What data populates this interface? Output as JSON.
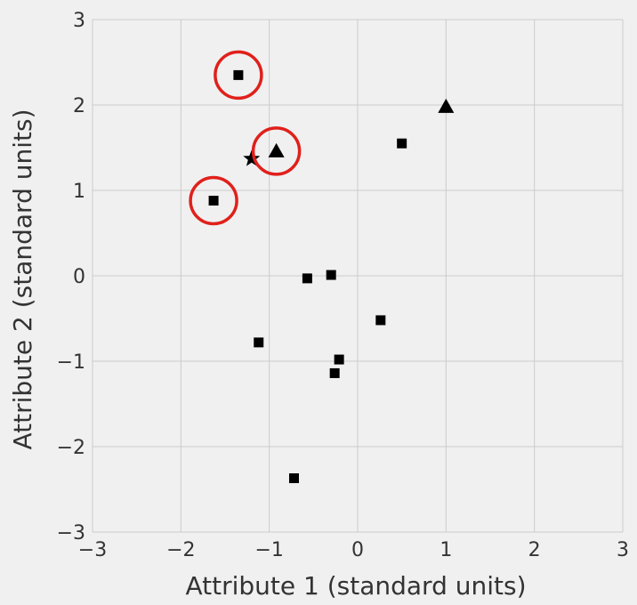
{
  "chart_data": {
    "type": "scatter",
    "xlabel": "Attribute 1 (standard units)",
    "ylabel": "Attribute 2 (standard units)",
    "xlim": [
      -3,
      3
    ],
    "ylim": [
      -3,
      3
    ],
    "xticks": [
      -3,
      -2,
      -1,
      0,
      1,
      2,
      3
    ],
    "yticks": [
      -3,
      -2,
      -1,
      0,
      1,
      2,
      3
    ],
    "xtick_labels": [
      "−3",
      "−2",
      "−1",
      "0",
      "1",
      "2",
      "3"
    ],
    "ytick_labels": [
      "−3",
      "−2",
      "−1",
      "0",
      "1",
      "2",
      "3"
    ],
    "grid": true,
    "series": [
      {
        "marker": "square",
        "color": "#000000",
        "points": [
          {
            "x": -1.35,
            "y": 2.35
          },
          {
            "x": -1.63,
            "y": 0.88
          },
          {
            "x": 0.5,
            "y": 1.55
          },
          {
            "x": -0.57,
            "y": -0.03
          },
          {
            "x": -0.3,
            "y": 0.01
          },
          {
            "x": 0.26,
            "y": -0.52
          },
          {
            "x": -1.12,
            "y": -0.78
          },
          {
            "x": -0.21,
            "y": -0.98
          },
          {
            "x": -0.26,
            "y": -1.14
          },
          {
            "x": -0.72,
            "y": -2.37
          }
        ]
      },
      {
        "marker": "triangle",
        "color": "#000000",
        "points": [
          {
            "x": 1.0,
            "y": 1.98
          },
          {
            "x": -0.92,
            "y": 1.46
          }
        ]
      },
      {
        "marker": "star",
        "color": "#000000",
        "points": [
          {
            "x": -1.2,
            "y": 1.37
          }
        ]
      }
    ],
    "highlights": {
      "shape": "circle",
      "color": "#e0201b",
      "points": [
        {
          "x": -1.35,
          "y": 2.35
        },
        {
          "x": -0.92,
          "y": 1.46
        },
        {
          "x": -1.63,
          "y": 0.88
        }
      ]
    }
  }
}
